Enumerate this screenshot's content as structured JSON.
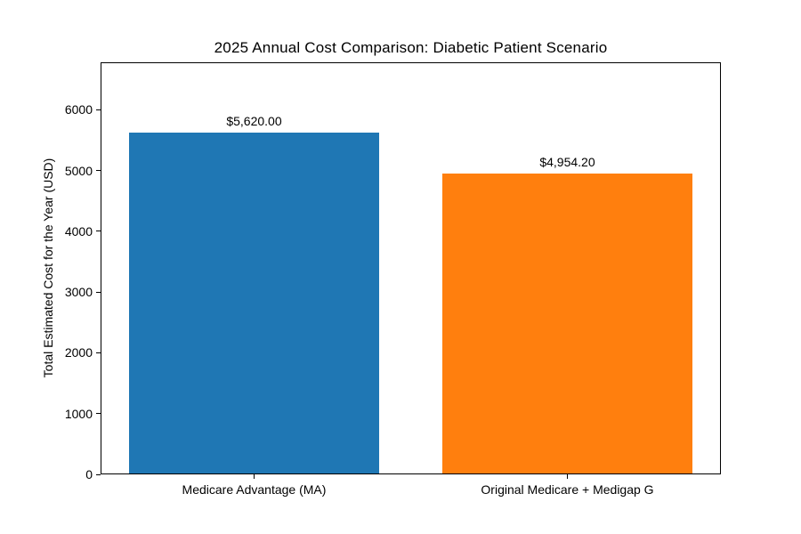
{
  "chart_data": {
    "type": "bar",
    "title": "2025 Annual Cost Comparison: Diabetic Patient Scenario",
    "categories": [
      "Medicare Advantage (MA)",
      "Original Medicare + Medigap G"
    ],
    "values": [
      5620.0,
      4954.2
    ],
    "value_labels": [
      "$5,620.00",
      "$4,954.20"
    ],
    "bar_colors": [
      "#1f77b4",
      "#ff7f0e"
    ],
    "xlabel": "",
    "ylabel": "Total Estimated Cost for the Year (USD)",
    "ylim": [
      0,
      6780
    ],
    "yticks": [
      0,
      1000,
      2000,
      3000,
      4000,
      5000,
      6000
    ],
    "grid": false,
    "legend": null,
    "axis_color": "#000000",
    "background_color": "#ffffff"
  }
}
